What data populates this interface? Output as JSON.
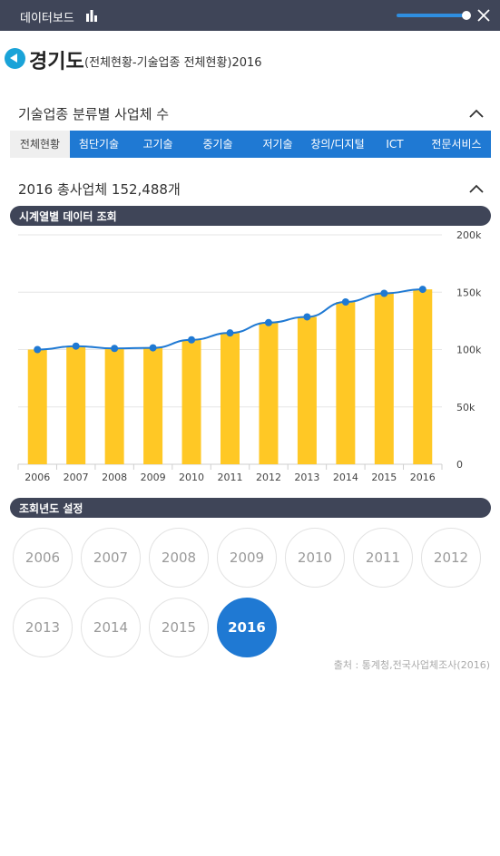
{
  "window": {
    "title": "데이터보드",
    "chart_icon": "bar-chart-icon",
    "close_icon": "close-icon"
  },
  "header": {
    "back_icon": "back-arrow-icon",
    "region": "경기도",
    "subtitle": "(전체현황-기술업종 전체현황)2016"
  },
  "section1": {
    "title": "기술업종 분류별 사업체 수",
    "chevron": "chevron-up-icon"
  },
  "tabs": [
    {
      "label": "전체현황",
      "active": true
    },
    {
      "label": "첨단기술",
      "active": false
    },
    {
      "label": "고기술",
      "active": false
    },
    {
      "label": "중기술",
      "active": false
    },
    {
      "label": "저기술",
      "active": false
    },
    {
      "label": "창의/디지털",
      "active": false
    },
    {
      "label": "ICT",
      "active": false
    },
    {
      "label": "전문서비스",
      "active": false
    }
  ],
  "section2": {
    "title": "2016 총사업체 152,488개",
    "chevron": "chevron-up-icon"
  },
  "timeseries_bar": {
    "label": "시계열별 데이터 조회"
  },
  "chart_data": {
    "type": "bar",
    "categories": [
      "2006",
      "2007",
      "2008",
      "2009",
      "2010",
      "2011",
      "2012",
      "2013",
      "2014",
      "2015",
      "2016"
    ],
    "series": [
      {
        "type": "bar",
        "values": [
          100000,
          103000,
          101000,
          101500,
          108500,
          114500,
          123500,
          128500,
          141500,
          149000,
          152488
        ],
        "color": "#ffc825"
      },
      {
        "type": "line",
        "values": [
          100000,
          103000,
          101000,
          101500,
          108500,
          114500,
          123500,
          128500,
          141500,
          149000,
          152488
        ],
        "color": "#1f79d3"
      }
    ],
    "ylim": [
      0,
      200000
    ],
    "yticks": [
      "0",
      "50k",
      "100k",
      "150k",
      "200k"
    ],
    "grid": true
  },
  "year_select": {
    "label": "조회년도 설정",
    "years": [
      "2006",
      "2007",
      "2008",
      "2009",
      "2010",
      "2011",
      "2012",
      "2013",
      "2014",
      "2015",
      "2016"
    ],
    "selected": "2016"
  },
  "source": "출처 : 통계청,전국사업체조사(2016)"
}
